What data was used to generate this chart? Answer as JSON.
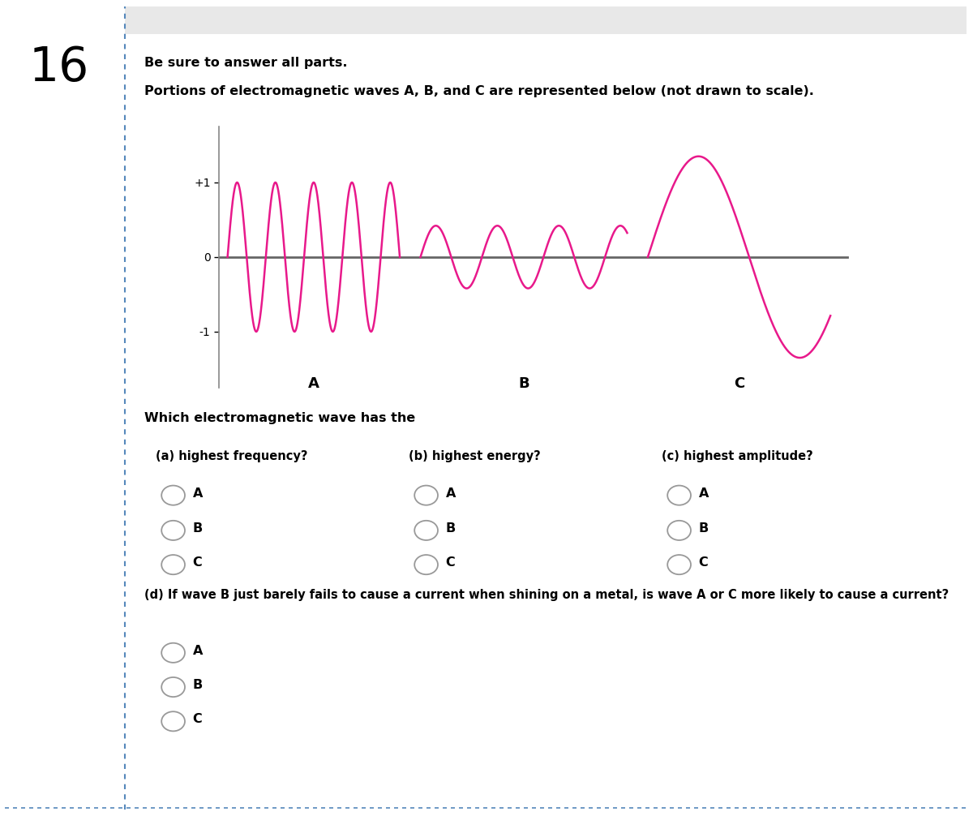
{
  "page_number": "16",
  "bg_color": "#ffffff",
  "left_border_color": "#5588bb",
  "wave_color": "#e8198b",
  "axis_color": "#666666",
  "text_color": "#000000",
  "question_intro": "Be sure to answer all parts.",
  "question_text": "Portions of electromagnetic waves A, B, and C are represented below (not drawn to scale).",
  "wave_question": "Which electromagnetic wave has the",
  "subq_a": "(a) highest frequency?",
  "subq_b": "(b) highest energy?",
  "subq_c": "(c) highest amplitude?",
  "subq_d": "(d) If wave B just barely fails to cause a current when shining on a metal, is wave A or C more likely to cause a current?",
  "options": [
    "A",
    "B",
    "C"
  ],
  "wave_A_amplitude": 1.0,
  "wave_A_frequency": 4.5,
  "wave_B_amplitude": 0.42,
  "wave_B_frequency": 2.8,
  "wave_C_amplitude": 1.35,
  "wave_C_frequency": 0.85
}
